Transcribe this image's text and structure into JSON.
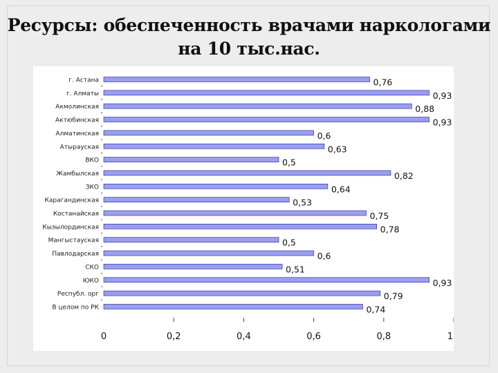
{
  "title_line1": "Ресурсы: обеспеченность врачами наркологами",
  "title_line2": "на 10 тыс.нас.",
  "colors": {
    "bar_fill": "#9a9ef0",
    "bar_stroke": "#20208a",
    "axis": "#444444"
  },
  "chart_data": {
    "type": "bar",
    "orientation": "horizontal",
    "title": "",
    "xlabel": "",
    "ylabel": "",
    "xlim": [
      0,
      1
    ],
    "xticks": [
      0,
      0.2,
      0.4,
      0.6,
      0.8,
      1
    ],
    "tick_labels": [
      "0",
      "0,2",
      "0,4",
      "0,6",
      "0,8",
      "1"
    ],
    "categories": [
      "г. Астана",
      "г. Алматы",
      "Акмолинская",
      "Актюбинская",
      "Алматинская",
      "Атырауская",
      "ВКО",
      "Жамбылская",
      "ЗКО",
      "Карагандинская",
      "Костанайская",
      "Кызылординская",
      "Мангыстауская",
      "Павлодарская",
      "СКО",
      "ЮКО",
      "Республ. орг",
      "В целом по РК"
    ],
    "values": [
      0.76,
      0.93,
      0.88,
      0.93,
      0.6,
      0.63,
      0.5,
      0.82,
      0.64,
      0.53,
      0.75,
      0.78,
      0.5,
      0.6,
      0.51,
      0.93,
      0.79,
      0.74
    ],
    "value_labels": [
      "0,76",
      "0,93",
      "0,88",
      "0,93",
      "0,6",
      "0,63",
      "0,5",
      "0,82",
      "0,64",
      "0,53",
      "0,75",
      "0,78",
      "0,5",
      "0,6",
      "0,51",
      "0,93",
      "0,79",
      "0,74"
    ],
    "grid": false,
    "legend": "none"
  }
}
